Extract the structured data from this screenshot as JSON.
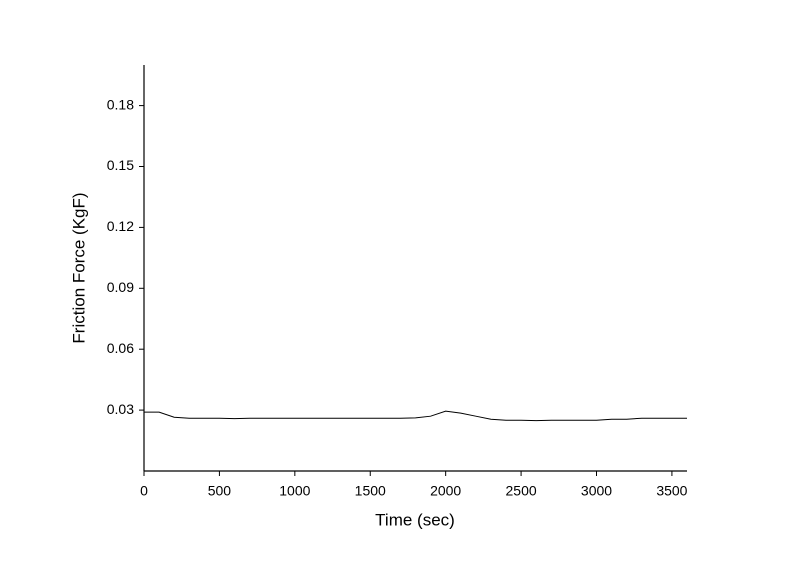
{
  "chart_data": {
    "type": "line",
    "x_label": "Time (sec)",
    "y_label": "Friction Force (KgF)",
    "x": [
      0,
      100,
      200,
      300,
      400,
      500,
      600,
      700,
      800,
      900,
      1000,
      1100,
      1200,
      1300,
      1400,
      1500,
      1600,
      1700,
      1800,
      1900,
      2000,
      2100,
      2200,
      2300,
      2400,
      2500,
      2600,
      2700,
      2800,
      2900,
      3000,
      3100,
      3200,
      3300,
      3400,
      3500,
      3600
    ],
    "series": [
      {
        "color": "#000000",
        "values": [
          0.029,
          0.029,
          0.0265,
          0.026,
          0.026,
          0.026,
          0.0258,
          0.026,
          0.026,
          0.026,
          0.026,
          0.026,
          0.026,
          0.026,
          0.026,
          0.026,
          0.026,
          0.026,
          0.0262,
          0.027,
          0.0295,
          0.0285,
          0.027,
          0.0255,
          0.025,
          0.025,
          0.0248,
          0.025,
          0.025,
          0.025,
          0.025,
          0.0255,
          0.0255,
          0.026,
          0.026,
          0.026,
          0.026
        ]
      }
    ],
    "xlim": [
      0,
      3600
    ],
    "xticks": [
      0,
      500,
      1000,
      1500,
      2000,
      2500,
      3000,
      3500
    ],
    "ylim": [
      0,
      0.2
    ],
    "yticks": [
      0.03,
      0.06,
      0.09,
      0.12,
      0.15,
      0.18
    ]
  }
}
